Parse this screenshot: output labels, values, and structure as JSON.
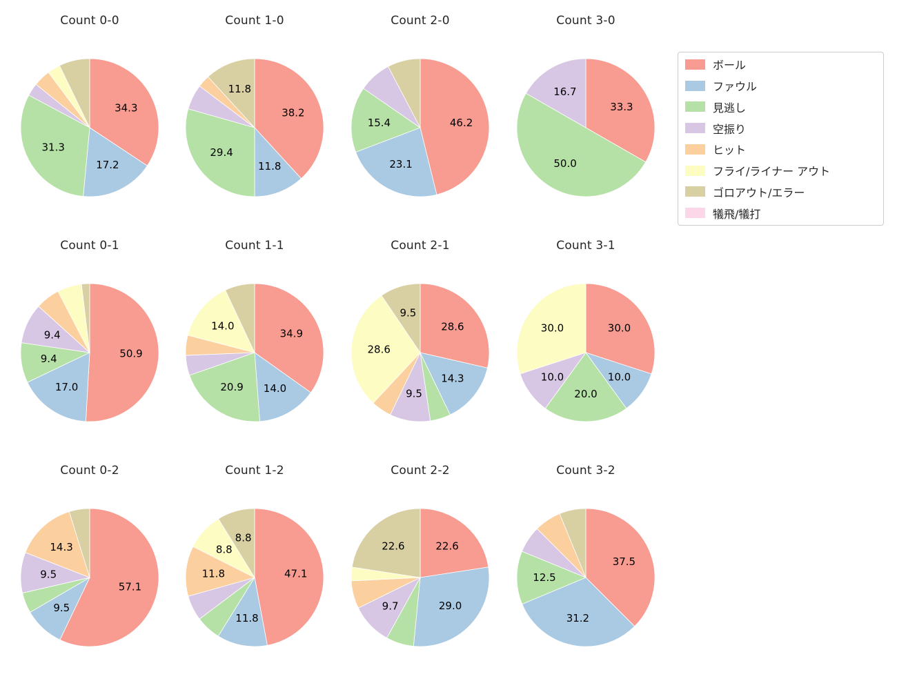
{
  "figure": {
    "background": "#ffffff",
    "text_color": "#262626"
  },
  "chart_data": {
    "type": "pie",
    "grid": {
      "columns": 4,
      "rows": 3
    },
    "start_angle": "top",
    "direction": "clockwise",
    "pct_label_distance": 0.6,
    "label_threshold_pct": 8,
    "legend": {
      "position": "upper right",
      "items": [
        {
          "key": "ball",
          "label": "ボール",
          "color": "#f89b90"
        },
        {
          "key": "foul",
          "label": "ファウル",
          "color": "#aac9e2"
        },
        {
          "key": "looking",
          "label": "見逃し",
          "color": "#b6e1a6"
        },
        {
          "key": "swing",
          "label": "空振り",
          "color": "#d7c6e4"
        },
        {
          "key": "hit",
          "label": "ヒット",
          "color": "#fbcf9e"
        },
        {
          "key": "fly_out",
          "label": "フライ/ライナー アウト",
          "color": "#fdfcc3"
        },
        {
          "key": "ground_out",
          "label": "ゴロアウト/エラー",
          "color": "#d8cfa3"
        },
        {
          "key": "sac",
          "label": "犠飛/犠打",
          "color": "#fcd7e9"
        }
      ]
    },
    "charts": [
      {
        "title": "Count 0-0",
        "slices": [
          {
            "key": "ball",
            "value": 34.3,
            "pct": "34.3"
          },
          {
            "key": "foul",
            "value": 17.2,
            "pct": "17.2"
          },
          {
            "key": "looking",
            "value": 31.3,
            "pct": "31.3"
          },
          {
            "key": "swing",
            "value": 3.0,
            "pct": null
          },
          {
            "key": "hit",
            "value": 4.0,
            "pct": null
          },
          {
            "key": "fly_out",
            "value": 3.0,
            "pct": null
          },
          {
            "key": "ground_out",
            "value": 7.2,
            "pct": null
          }
        ]
      },
      {
        "title": "Count 1-0",
        "slices": [
          {
            "key": "ball",
            "value": 38.2,
            "pct": "38.2"
          },
          {
            "key": "foul",
            "value": 11.8,
            "pct": "11.8"
          },
          {
            "key": "looking",
            "value": 29.4,
            "pct": "29.4"
          },
          {
            "key": "swing",
            "value": 5.9,
            "pct": null
          },
          {
            "key": "hit",
            "value": 2.9,
            "pct": null
          },
          {
            "key": "ground_out",
            "value": 11.8,
            "pct": "11.8"
          }
        ]
      },
      {
        "title": "Count 2-0",
        "slices": [
          {
            "key": "ball",
            "value": 46.2,
            "pct": "46.2"
          },
          {
            "key": "foul",
            "value": 23.1,
            "pct": "23.1"
          },
          {
            "key": "looking",
            "value": 15.4,
            "pct": "15.4"
          },
          {
            "key": "swing",
            "value": 7.7,
            "pct": null
          },
          {
            "key": "ground_out",
            "value": 7.7,
            "pct": null
          }
        ]
      },
      {
        "title": "Count 3-0",
        "slices": [
          {
            "key": "ball",
            "value": 33.3,
            "pct": "33.3"
          },
          {
            "key": "looking",
            "value": 50.0,
            "pct": "50.0"
          },
          {
            "key": "swing",
            "value": 16.7,
            "pct": "16.7"
          }
        ]
      },
      {
        "title": "Count 0-1",
        "slices": [
          {
            "key": "ball",
            "value": 50.9,
            "pct": "50.9"
          },
          {
            "key": "foul",
            "value": 17.0,
            "pct": "17.0"
          },
          {
            "key": "looking",
            "value": 9.4,
            "pct": "9.4"
          },
          {
            "key": "swing",
            "value": 9.4,
            "pct": "9.4"
          },
          {
            "key": "hit",
            "value": 5.7,
            "pct": null
          },
          {
            "key": "fly_out",
            "value": 5.7,
            "pct": null
          },
          {
            "key": "ground_out",
            "value": 1.9,
            "pct": null
          }
        ]
      },
      {
        "title": "Count 1-1",
        "slices": [
          {
            "key": "ball",
            "value": 34.9,
            "pct": "34.9"
          },
          {
            "key": "foul",
            "value": 14.0,
            "pct": "14.0"
          },
          {
            "key": "looking",
            "value": 20.9,
            "pct": "20.9"
          },
          {
            "key": "swing",
            "value": 4.7,
            "pct": null
          },
          {
            "key": "hit",
            "value": 4.7,
            "pct": null
          },
          {
            "key": "fly_out",
            "value": 14.0,
            "pct": "14.0"
          },
          {
            "key": "ground_out",
            "value": 7.0,
            "pct": null
          }
        ]
      },
      {
        "title": "Count 2-1",
        "slices": [
          {
            "key": "ball",
            "value": 28.6,
            "pct": "28.6"
          },
          {
            "key": "foul",
            "value": 14.3,
            "pct": "14.3"
          },
          {
            "key": "looking",
            "value": 4.8,
            "pct": null
          },
          {
            "key": "swing",
            "value": 9.5,
            "pct": "9.5"
          },
          {
            "key": "hit",
            "value": 4.8,
            "pct": null
          },
          {
            "key": "fly_out",
            "value": 28.6,
            "pct": "28.6"
          },
          {
            "key": "ground_out",
            "value": 9.5,
            "pct": "9.5"
          }
        ]
      },
      {
        "title": "Count 3-1",
        "slices": [
          {
            "key": "ball",
            "value": 30.0,
            "pct": "30.0"
          },
          {
            "key": "foul",
            "value": 10.0,
            "pct": "10.0"
          },
          {
            "key": "looking",
            "value": 20.0,
            "pct": "20.0"
          },
          {
            "key": "swing",
            "value": 10.0,
            "pct": "10.0"
          },
          {
            "key": "fly_out",
            "value": 30.0,
            "pct": "30.0"
          }
        ]
      },
      {
        "title": "Count 0-2",
        "slices": [
          {
            "key": "ball",
            "value": 57.1,
            "pct": "57.1"
          },
          {
            "key": "foul",
            "value": 9.5,
            "pct": "9.5"
          },
          {
            "key": "looking",
            "value": 4.8,
            "pct": null
          },
          {
            "key": "swing",
            "value": 9.5,
            "pct": "9.5"
          },
          {
            "key": "hit",
            "value": 14.3,
            "pct": "14.3"
          },
          {
            "key": "ground_out",
            "value": 4.8,
            "pct": null
          }
        ]
      },
      {
        "title": "Count 1-2",
        "slices": [
          {
            "key": "ball",
            "value": 47.1,
            "pct": "47.1"
          },
          {
            "key": "foul",
            "value": 11.8,
            "pct": "11.8"
          },
          {
            "key": "looking",
            "value": 5.9,
            "pct": null
          },
          {
            "key": "swing",
            "value": 5.9,
            "pct": null
          },
          {
            "key": "hit",
            "value": 11.8,
            "pct": "11.8"
          },
          {
            "key": "fly_out",
            "value": 8.8,
            "pct": "8.8"
          },
          {
            "key": "ground_out",
            "value": 8.8,
            "pct": "8.8"
          }
        ]
      },
      {
        "title": "Count 2-2",
        "slices": [
          {
            "key": "ball",
            "value": 22.6,
            "pct": "22.6"
          },
          {
            "key": "foul",
            "value": 29.0,
            "pct": "29.0"
          },
          {
            "key": "looking",
            "value": 6.5,
            "pct": null
          },
          {
            "key": "swing",
            "value": 9.7,
            "pct": "9.7"
          },
          {
            "key": "hit",
            "value": 6.5,
            "pct": null
          },
          {
            "key": "fly_out",
            "value": 3.2,
            "pct": null
          },
          {
            "key": "ground_out",
            "value": 22.6,
            "pct": "22.6"
          }
        ]
      },
      {
        "title": "Count 3-2",
        "slices": [
          {
            "key": "ball",
            "value": 37.5,
            "pct": "37.5"
          },
          {
            "key": "foul",
            "value": 31.2,
            "pct": "31.2"
          },
          {
            "key": "looking",
            "value": 12.5,
            "pct": "12.5"
          },
          {
            "key": "swing",
            "value": 6.3,
            "pct": null
          },
          {
            "key": "hit",
            "value": 6.3,
            "pct": null
          },
          {
            "key": "ground_out",
            "value": 6.2,
            "pct": null
          }
        ]
      }
    ]
  }
}
